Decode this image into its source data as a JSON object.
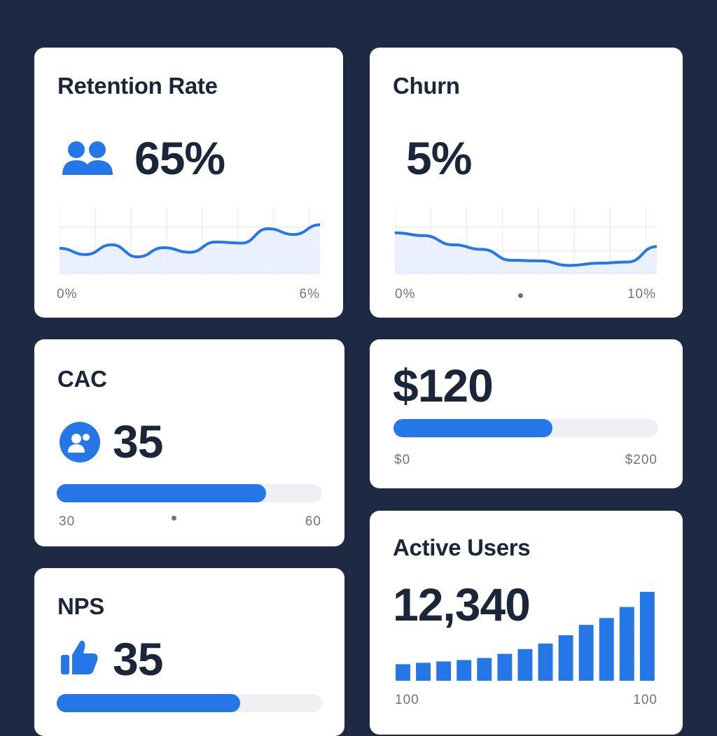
{
  "colors": {
    "accent": "#2577e8",
    "background": "#1e2a44"
  },
  "retention": {
    "title": "Retention Rate",
    "value": "65%",
    "icon": "users-icon",
    "min_label": "0%",
    "max_label": "6%"
  },
  "churn": {
    "title": "Churn",
    "value": "5%",
    "min_label": "0%",
    "max_label": "10%"
  },
  "cac": {
    "title": "CAC",
    "value": "35",
    "icon": "user-group-chat-icon",
    "progress": 0.79,
    "min_label": "30",
    "max_label": "60"
  },
  "spend": {
    "value": "$120",
    "progress": 0.6,
    "min_label": "$0",
    "max_label": "$200"
  },
  "nps": {
    "title": "NPS",
    "value": "35",
    "icon": "thumbs-up-icon",
    "progress": 0.69
  },
  "active_users": {
    "title": "Active Users",
    "value": "12,340",
    "min_label": "100",
    "max_label": "100"
  },
  "chart_data": [
    {
      "type": "line",
      "name": "retention-sparkline",
      "values": [
        38,
        27,
        44,
        23,
        39,
        31,
        49,
        47,
        72,
        62,
        79
      ],
      "ylim": [
        0,
        100
      ]
    },
    {
      "type": "line",
      "name": "churn-sparkline",
      "values": [
        65,
        60,
        44,
        36,
        17,
        16,
        8,
        12,
        14,
        41
      ],
      "ylim": [
        0,
        100
      ]
    },
    {
      "type": "bar",
      "name": "active-users-bars",
      "values": [
        24,
        26,
        28,
        30,
        33,
        39,
        46,
        54,
        66,
        81,
        91,
        107,
        129
      ],
      "ylim": [
        0,
        135
      ]
    }
  ]
}
